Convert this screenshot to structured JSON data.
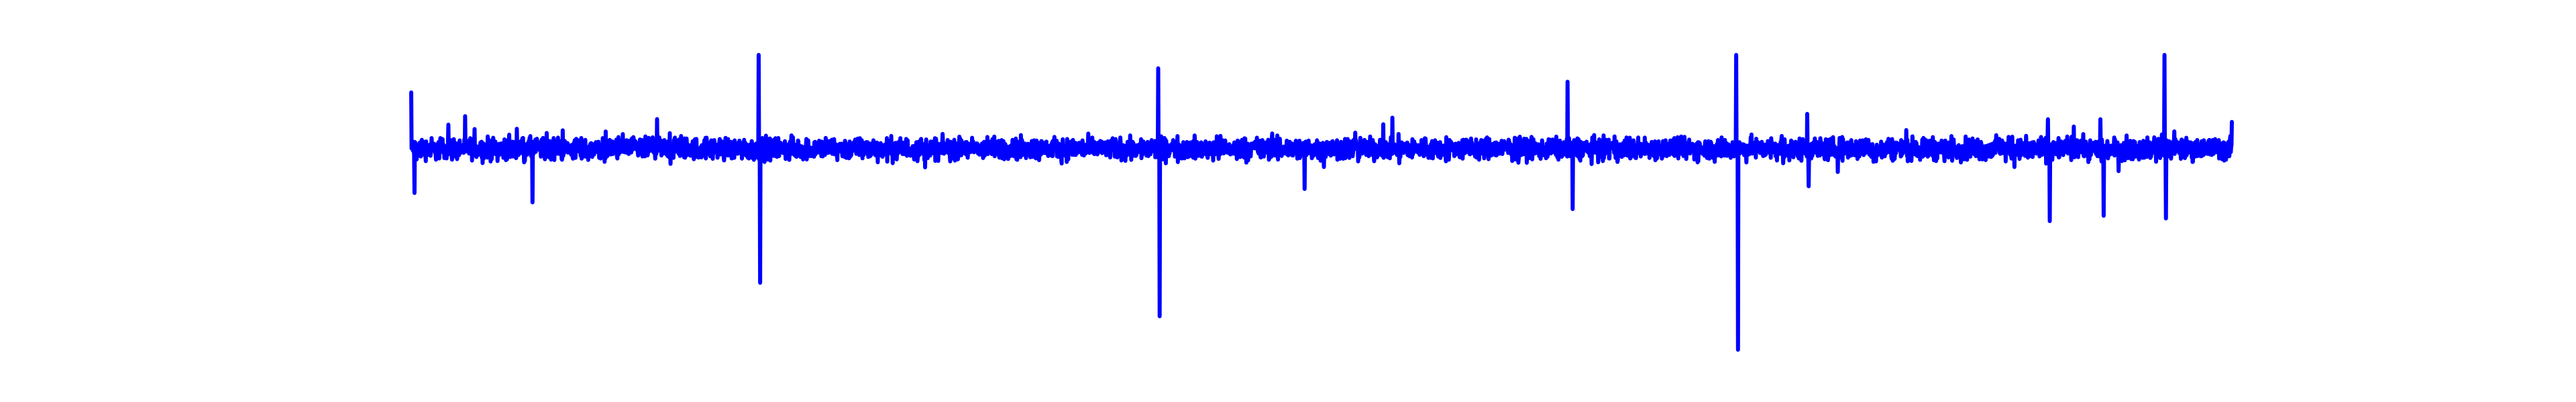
{
  "chart_data": {
    "type": "line",
    "title": "",
    "xlabel": "",
    "ylabel": "",
    "axes_visible": false,
    "grid": false,
    "legend": "none",
    "x_range": [
      0,
      5000
    ],
    "ylim": [
      -1.0,
      1.0
    ],
    "series": [
      {
        "color": "#0000ff",
        "n_points": 5000,
        "baseline": 0.0,
        "noise_amplitude": 0.05,
        "events": [
          {
            "x": 0,
            "value": 0.42
          },
          {
            "x": 10,
            "value": -0.33
          },
          {
            "x": 110,
            "value": 0.18
          },
          {
            "x": 360,
            "value": -0.4
          },
          {
            "x": 1030,
            "value": 0.7
          },
          {
            "x": 1035,
            "value": -1.0
          },
          {
            "x": 2215,
            "value": 0.6
          },
          {
            "x": 2220,
            "value": -1.25
          },
          {
            "x": 2650,
            "value": -0.3
          },
          {
            "x": 3430,
            "value": 0.5
          },
          {
            "x": 3445,
            "value": -0.45
          },
          {
            "x": 3930,
            "value": 0.7
          },
          {
            "x": 3935,
            "value": -1.5
          },
          {
            "x": 4140,
            "value": 0.26
          },
          {
            "x": 4145,
            "value": -0.28
          },
          {
            "x": 4855,
            "value": 0.22
          },
          {
            "x": 4860,
            "value": -0.54
          },
          {
            "x": 5010,
            "value": 0.22
          },
          {
            "x": 5020,
            "value": -0.5
          },
          {
            "x": 5200,
            "value": 0.7
          },
          {
            "x": 5205,
            "value": -0.52
          },
          {
            "x": 5400,
            "value": 0.2
          },
          {
            "x": 5405,
            "value": -0.39
          }
        ]
      }
    ]
  }
}
